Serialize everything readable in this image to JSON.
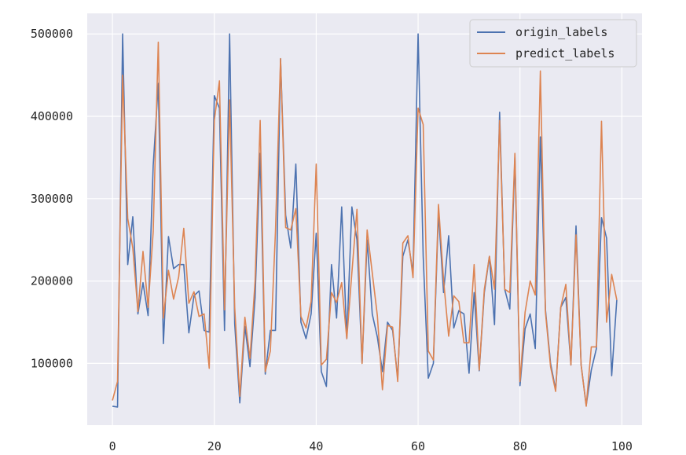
{
  "chart_data": {
    "type": "line",
    "title": "",
    "xlabel": "",
    "ylabel": "",
    "xlim": [
      -4.95,
      103.95
    ],
    "ylim": [
      25000,
      525000
    ],
    "xticks": [
      0,
      20,
      40,
      60,
      80,
      100
    ],
    "xtick_labels": [
      "0",
      "20",
      "40",
      "60",
      "80",
      "100"
    ],
    "yticks": [
      100000,
      200000,
      300000,
      400000,
      500000
    ],
    "ytick_labels": [
      "100000",
      "200000",
      "300000",
      "400000",
      "500000"
    ],
    "grid": true,
    "legend_position": "upper right",
    "x": [
      0,
      1,
      2,
      3,
      4,
      5,
      6,
      7,
      8,
      9,
      10,
      11,
      12,
      13,
      14,
      15,
      16,
      17,
      18,
      19,
      20,
      21,
      22,
      23,
      24,
      25,
      26,
      27,
      28,
      29,
      30,
      31,
      32,
      33,
      34,
      35,
      36,
      37,
      38,
      39,
      40,
      41,
      42,
      43,
      44,
      45,
      46,
      47,
      48,
      49,
      50,
      51,
      52,
      53,
      54,
      55,
      56,
      57,
      58,
      59,
      60,
      61,
      62,
      63,
      64,
      65,
      66,
      67,
      68,
      69,
      70,
      71,
      72,
      73,
      74,
      75,
      76,
      77,
      78,
      79,
      80,
      81,
      82,
      83,
      84,
      85,
      86,
      87,
      88,
      89,
      90,
      91,
      92,
      93,
      94,
      95,
      96,
      97,
      98,
      99
    ],
    "series": [
      {
        "name": "origin_labels",
        "color": "#4c72b0",
        "values": [
          48000,
          47000,
          500000,
          220000,
          278000,
          160000,
          198000,
          158000,
          340000,
          440000,
          124000,
          254000,
          215000,
          220000,
          220000,
          137000,
          182000,
          188000,
          140000,
          138000,
          425000,
          410000,
          140000,
          500000,
          148000,
          52000,
          145000,
          96000,
          180000,
          355000,
          87000,
          140000,
          140000,
          470000,
          280000,
          240000,
          342000,
          150000,
          130000,
          160000,
          258000,
          90000,
          72000,
          220000,
          155000,
          290000,
          130000,
          290000,
          250000,
          100000,
          250000,
          160000,
          132000,
          90000,
          150000,
          140000,
          82000,
          230000,
          250000,
          210000,
          500000,
          230000,
          82000,
          100000,
          283000,
          186000,
          255000,
          143000,
          164000,
          160000,
          88000,
          186000,
          91000,
          186000,
          230000,
          147000,
          405000,
          190000,
          166000,
          350000,
          73000,
          142000,
          160000,
          118000,
          375000,
          165000,
          100000,
          68000,
          168000,
          180000,
          98000,
          267000,
          98000,
          49000,
          92000,
          118000,
          277000,
          252000,
          85000,
          177000
        ]
      },
      {
        "name": "predict_labels",
        "color": "#dd8452",
        "values": [
          55000,
          78000,
          450000,
          276000,
          240000,
          163000,
          236000,
          168000,
          260000,
          490000,
          155000,
          213000,
          178000,
          205000,
          264000,
          173000,
          187000,
          157000,
          160000,
          94000,
          395000,
          443000,
          165000,
          420000,
          168000,
          60000,
          156000,
          106000,
          200000,
          395000,
          90000,
          115000,
          260000,
          470000,
          265000,
          262000,
          288000,
          157000,
          143000,
          175000,
          342000,
          98000,
          105000,
          186000,
          174000,
          198000,
          130000,
          210000,
          287000,
          100000,
          262000,
          210000,
          158000,
          68000,
          146000,
          144000,
          78000,
          246000,
          255000,
          204000,
          410000,
          390000,
          115000,
          104000,
          293000,
          201000,
          133000,
          182000,
          175000,
          125000,
          125000,
          220000,
          92000,
          190000,
          230000,
          190000,
          395000,
          190000,
          186000,
          355000,
          78000,
          162000,
          200000,
          183000,
          455000,
          162000,
          96000,
          66000,
          168000,
          196000,
          98000,
          256000,
          98000,
          48000,
          120000,
          120000,
          394000,
          150000,
          208000,
          177000
        ]
      }
    ]
  }
}
